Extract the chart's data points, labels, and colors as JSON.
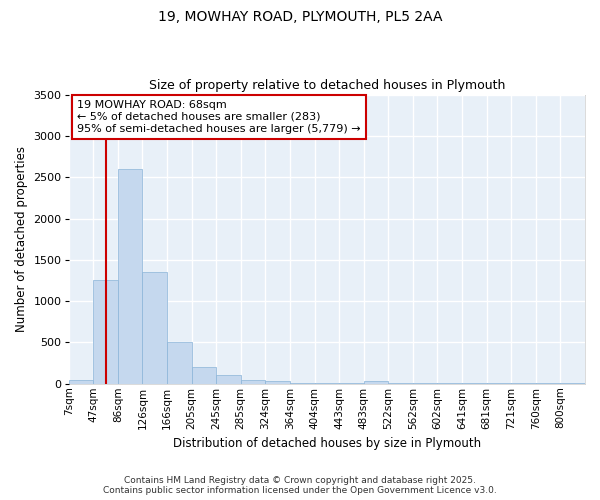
{
  "title1": "19, MOWHAY ROAD, PLYMOUTH, PL5 2AA",
  "title2": "Size of property relative to detached houses in Plymouth",
  "xlabel": "Distribution of detached houses by size in Plymouth",
  "ylabel": "Number of detached properties",
  "categories": [
    "7sqm",
    "47sqm",
    "86sqm",
    "126sqm",
    "166sqm",
    "205sqm",
    "245sqm",
    "285sqm",
    "324sqm",
    "364sqm",
    "404sqm",
    "443sqm",
    "483sqm",
    "522sqm",
    "562sqm",
    "602sqm",
    "641sqm",
    "681sqm",
    "721sqm",
    "760sqm",
    "800sqm"
  ],
  "bar_values": [
    50,
    1250,
    2600,
    1350,
    500,
    200,
    110,
    50,
    35,
    5,
    5,
    5,
    30,
    5,
    5,
    5,
    5,
    5,
    5,
    5,
    5
  ],
  "bar_color": "#c5d8ee",
  "bar_edge_color": "#8ab4d8",
  "vline_color": "#cc0000",
  "annotation_title": "19 MOWHAY ROAD: 68sqm",
  "annotation_line2": "← 5% of detached houses are smaller (283)",
  "annotation_line3": "95% of semi-detached houses are larger (5,779) →",
  "annotation_box_color": "white",
  "annotation_box_edge": "#cc0000",
  "ylim": [
    0,
    3500
  ],
  "yticks": [
    0,
    500,
    1000,
    1500,
    2000,
    2500,
    3000,
    3500
  ],
  "bg_color": "#e8f0f8",
  "grid_color": "white",
  "footer1": "Contains HM Land Registry data © Crown copyright and database right 2025.",
  "footer2": "Contains public sector information licensed under the Open Government Licence v3.0."
}
